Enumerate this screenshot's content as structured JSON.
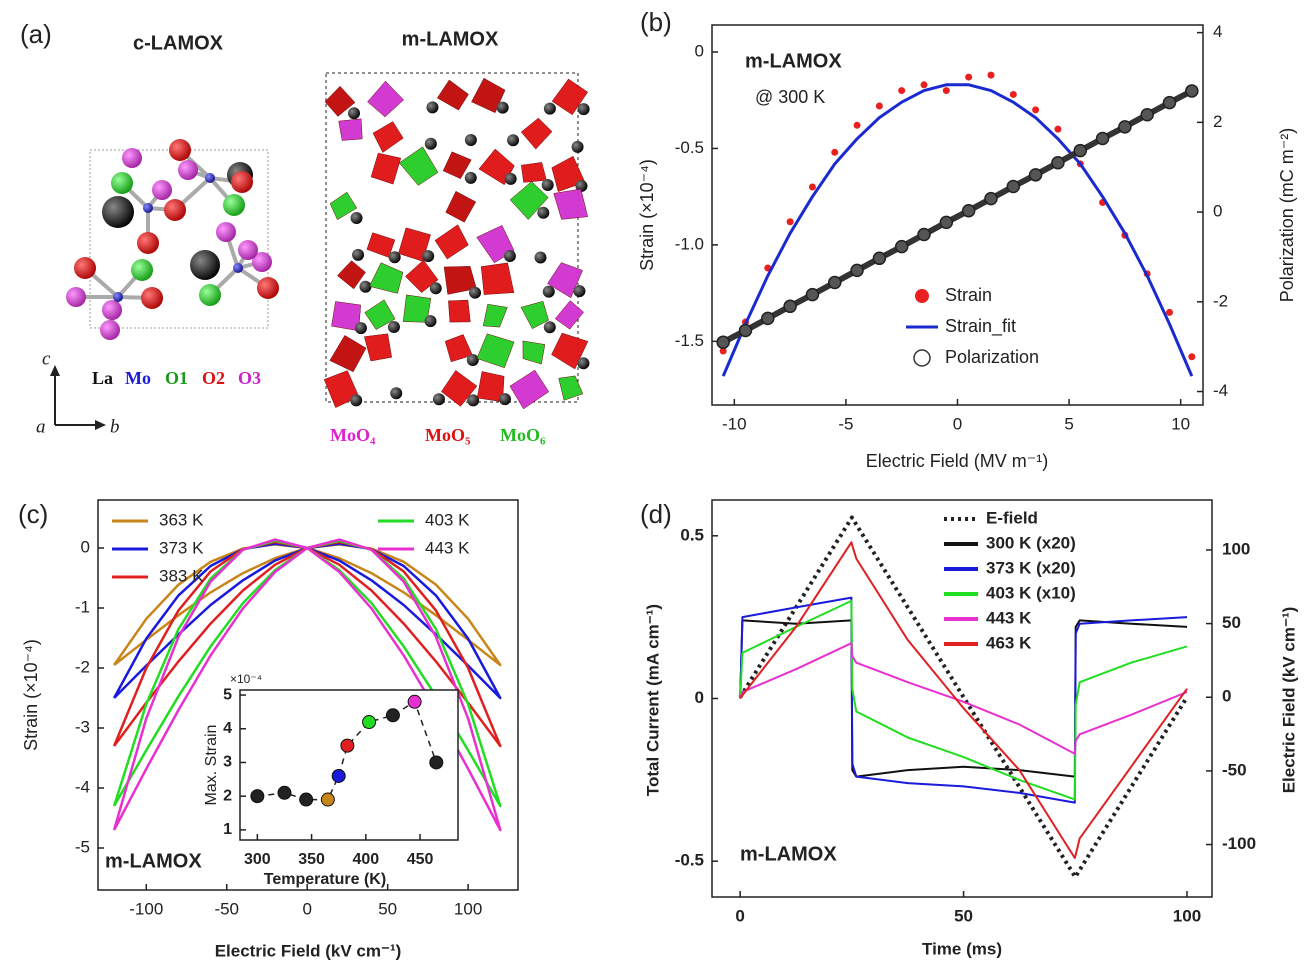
{
  "structure_panel": {
    "label": "(a)",
    "cubic_title": "c-LAMOX",
    "monoclinic_title": "m-LAMOX",
    "atom_legend": [
      "La",
      "Mo",
      "O1",
      "O2",
      "O3"
    ],
    "polyhedra_legend": [
      "MoO₄",
      "MoO₅",
      "MoO₆"
    ],
    "axes": [
      "c",
      "a",
      "b"
    ]
  },
  "chart_data": [
    {
      "type": "line",
      "panel_label": "(b)",
      "xlabel": "Electric Field (MV m⁻¹)",
      "ylabel": "Strain (×10⁻⁴)",
      "y2label": "Polarization (mC m⁻²)",
      "annotations": [
        "m-LAMOX",
        "@ 300 K"
      ],
      "legend": "lower right",
      "x": [
        -10.5,
        -9.5,
        -8.5,
        -7.5,
        -6.5,
        -5.5,
        -4.5,
        -3.5,
        -2.5,
        -1.5,
        -0.5,
        0.5,
        1.5,
        2.5,
        3.5,
        4.5,
        5.5,
        6.5,
        7.5,
        8.5,
        9.5,
        10.5
      ],
      "xlim": [
        -11,
        11
      ],
      "xticks": [
        -10,
        -5,
        0,
        5,
        10
      ],
      "ylim": [
        -1.83,
        0.14
      ],
      "yticks": [
        0,
        -0.5,
        {
          "value": -1,
          "label": "-1.0"
        },
        -1.5
      ],
      "y2lim": [
        -4.3,
        4.17
      ],
      "y2ticks": [
        4,
        2,
        0,
        -2,
        -4
      ],
      "series": [
        {
          "name": "Strain",
          "color": "#e82020",
          "marker": "dot",
          "values": [
            -1.55,
            -1.4,
            -1.12,
            -0.88,
            -0.7,
            -0.52,
            -0.38,
            -0.28,
            -0.2,
            -0.17,
            -0.2,
            -0.13,
            -0.12,
            -0.22,
            -0.3,
            -0.4,
            -0.58,
            -0.78,
            -0.95,
            -1.15,
            -1.35,
            -1.58
          ]
        },
        {
          "name": "Strain_fit",
          "color": "#1a2ad0",
          "values": [
            -1.68,
            -1.41,
            -1.16,
            -0.94,
            -0.75,
            -0.58,
            -0.45,
            -0.34,
            -0.26,
            -0.2,
            -0.17,
            -0.17,
            -0.2,
            -0.26,
            -0.34,
            -0.45,
            -0.58,
            -0.75,
            -0.94,
            -1.16,
            -1.41,
            -1.68
          ]
        },
        {
          "name": "Polarization",
          "color": "#333333",
          "marker": "circle",
          "axis": "y2",
          "values": [
            -2.9,
            -2.64,
            -2.37,
            -2.1,
            -1.84,
            -1.57,
            -1.3,
            -1.03,
            -0.77,
            -0.5,
            -0.23,
            0.03,
            0.3,
            0.57,
            0.83,
            1.1,
            1.37,
            1.64,
            1.9,
            2.17,
            2.44,
            2.7
          ]
        }
      ]
    },
    {
      "type": "line",
      "panel_label": "(c)",
      "xlabel": "Electric Field (kV cm⁻¹)",
      "ylabel": "Strain (×10⁻⁴)",
      "annotations": [
        "m-LAMOX"
      ],
      "legend": "upper",
      "x": [
        -120,
        -100,
        -80,
        -60,
        -40,
        -20,
        0,
        20,
        40,
        60,
        80,
        100,
        120,
        100,
        80,
        60,
        40,
        20,
        0,
        -20,
        -40,
        -60,
        -80,
        -100,
        -120
      ],
      "xlim": [
        -130,
        131
      ],
      "xticks": [
        -100,
        -50,
        0,
        50,
        100
      ],
      "ylim": [
        -5.7,
        0.8
      ],
      "yticks": [
        0,
        -1,
        -2,
        -3,
        -4,
        -5
      ],
      "series": [
        {
          "name": "363 K",
          "color": "#c8861a",
          "values": [
            -1.95,
            -1.53,
            -1.12,
            -0.74,
            -0.42,
            -0.17,
            0,
            0.06,
            -0.01,
            -0.23,
            -0.61,
            -1.18,
            -1.95,
            -1.53,
            -1.12,
            -0.74,
            -0.42,
            -0.17,
            0,
            0.06,
            -0.01,
            -0.23,
            -0.61,
            -1.18,
            -1.95
          ]
        },
        {
          "name": "373 K",
          "color": "#1a1adc",
          "values": [
            -2.5,
            -1.96,
            -1.44,
            -0.95,
            -0.54,
            -0.21,
            0,
            0.07,
            -0.02,
            -0.3,
            -0.79,
            -1.51,
            -2.5,
            -1.96,
            -1.44,
            -0.95,
            -0.54,
            -0.21,
            0,
            0.07,
            -0.02,
            -0.3,
            -0.79,
            -1.51,
            -2.5
          ]
        },
        {
          "name": "383 K",
          "color": "#e02020",
          "values": [
            -3.3,
            -2.58,
            -1.89,
            -1.26,
            -0.71,
            -0.28,
            0,
            0.1,
            -0.02,
            -0.39,
            -1.04,
            -2.0,
            -3.3,
            -2.58,
            -1.89,
            -1.26,
            -0.71,
            -0.28,
            0,
            0.1,
            -0.02,
            -0.39,
            -1.04,
            -2.0,
            -3.3
          ]
        },
        {
          "name": "403 K",
          "color": "#22dd22",
          "values": [
            -4.3,
            -3.37,
            -2.47,
            -1.64,
            -0.92,
            -0.37,
            0,
            0.12,
            -0.03,
            -0.51,
            -1.35,
            -2.6,
            -4.3,
            -3.37,
            -2.47,
            -1.64,
            -0.92,
            -0.37,
            0,
            0.12,
            -0.03,
            -0.51,
            -1.35,
            -2.6,
            -4.3
          ]
        },
        {
          "name": "443 K",
          "color": "#e830d0",
          "values": [
            -4.7,
            -3.68,
            -2.7,
            -1.79,
            -1.01,
            -0.4,
            0,
            0.14,
            -0.03,
            -0.56,
            -1.48,
            -2.84,
            -4.7,
            -3.68,
            -2.7,
            -1.79,
            -1.01,
            -0.4,
            0,
            0.14,
            -0.03,
            -0.56,
            -1.48,
            -2.84,
            -4.7
          ]
        }
      ]
    },
    {
      "type": "scatter",
      "xlabel": "Temperature (K)",
      "ylabel": "Max. Strain",
      "multiplier": "×10⁻⁴",
      "line_style": "dashed",
      "x": [
        300,
        325,
        345,
        365,
        375,
        383,
        403,
        425,
        445,
        465
      ],
      "values": [
        2.0,
        2.1,
        1.9,
        1.9,
        2.6,
        3.5,
        4.2,
        4.4,
        4.8,
        3.0
      ],
      "colors": [
        "#222222",
        "#222222",
        "#222222",
        "#c8861a",
        "#1a1adc",
        "#e02020",
        "#22dd22",
        "#222222",
        "#e830d0",
        "#222222"
      ],
      "xlim": [
        284,
        485
      ],
      "xticks": [
        300,
        350,
        400,
        450
      ],
      "ylim": [
        0.7,
        5.15
      ],
      "yticks": [
        1,
        2,
        3,
        4,
        5
      ]
    },
    {
      "type": "line",
      "panel_label": "(d)",
      "xlabel": "Time (ms)",
      "ylabel": "Total Current (mA cm⁻¹)",
      "y2label": "Electric Field (kV cm⁻¹)",
      "annotations": [
        "m-LAMOX"
      ],
      "legend": "upper right",
      "x": [
        0,
        0.5,
        12.5,
        24.9,
        25.1,
        26,
        37.5,
        50,
        62.5,
        74.9,
        75.1,
        76,
        87.5,
        100
      ],
      "xlim": [
        -6.3,
        105.6
      ],
      "xticks": [
        0,
        50,
        100
      ],
      "ylim": [
        -0.61,
        0.61
      ],
      "yticks": [
        0.5,
        0,
        -0.5
      ],
      "y2lim": [
        -135.6,
        133.9
      ],
      "y2ticks": [
        100,
        50,
        0,
        -50,
        -100
      ],
      "series": [
        {
          "name": "E-field",
          "color": "#222222",
          "axis": "y2",
          "line_style": "dotted",
          "x": [
            0,
            25,
            75,
            100
          ],
          "values": [
            0,
            122,
            -122,
            0
          ]
        },
        {
          "name": "300 K (x20)",
          "color": "#111111",
          "values": [
            0,
            0.24,
            0.23,
            0.24,
            -0.22,
            -0.24,
            -0.22,
            -0.21,
            -0.22,
            -0.24,
            0.22,
            0.24,
            0.23,
            0.22
          ]
        },
        {
          "name": "373 K (x20)",
          "color": "#1a1adc",
          "values": [
            0,
            0.25,
            0.28,
            0.31,
            -0.2,
            -0.24,
            -0.26,
            -0.27,
            -0.29,
            -0.32,
            0.2,
            0.23,
            0.24,
            0.25
          ]
        },
        {
          "name": "403 K (x10)",
          "color": "#22dd22",
          "values": [
            0,
            0.14,
            0.22,
            0.3,
            0.03,
            -0.04,
            -0.12,
            -0.18,
            -0.25,
            -0.31,
            -0.02,
            0.05,
            0.11,
            0.16
          ]
        },
        {
          "name": "443 K",
          "color": "#e830d0",
          "values": [
            0,
            0.02,
            0.09,
            0.17,
            0.13,
            0.11,
            0.05,
            -0.01,
            -0.08,
            -0.17,
            -0.13,
            -0.11,
            -0.05,
            0.02
          ]
        },
        {
          "name": "463 K",
          "color": "#e02020",
          "values": [
            0,
            0.01,
            0.22,
            0.48,
            0.47,
            0.43,
            0.18,
            -0.03,
            -0.22,
            -0.49,
            -0.48,
            -0.43,
            -0.21,
            0.03
          ]
        }
      ]
    }
  ]
}
